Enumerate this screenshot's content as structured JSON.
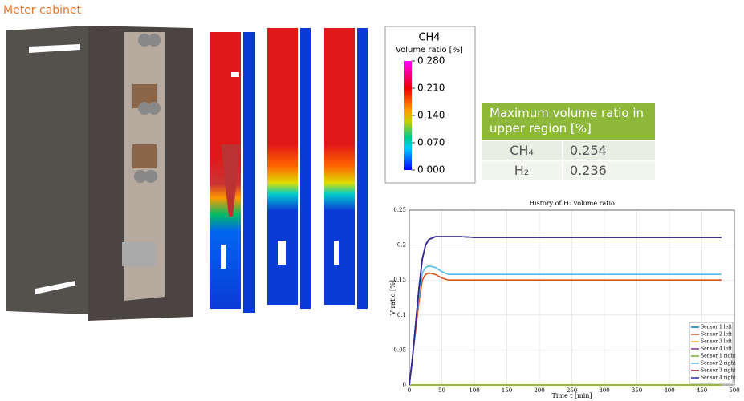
{
  "header": {
    "title": "Meter cabinet"
  },
  "colorbar": {
    "title": "CH4",
    "subtitle": "Volume ratio [%]",
    "ticks": [
      {
        "value": 0.28,
        "label": "0.280"
      },
      {
        "value": 0.21,
        "label": "0.210"
      },
      {
        "value": 0.14,
        "label": "0.140"
      },
      {
        "value": 0.07,
        "label": "0.070"
      },
      {
        "value": 0,
        "label": "0.000"
      }
    ]
  },
  "table": {
    "title": "Maximum volume ratio in upper region [%]",
    "rows": [
      [
        "CH₄",
        "0.254"
      ],
      [
        "H₂",
        "0.236"
      ]
    ]
  },
  "chart_data": {
    "type": "line",
    "title": "History of H₂ volume ratio",
    "x_label": "Time t [min]",
    "y_label": "V ratio [%]",
    "x": [
      0,
      5,
      10,
      15,
      20,
      25,
      30,
      40,
      50,
      60,
      80,
      100,
      150,
      200,
      300,
      400,
      480
    ],
    "series": [
      {
        "name": "Sensor 1 left",
        "color": "#0072bd",
        "values": [
          0,
          0.04,
          0.09,
          0.14,
          0.18,
          0.2,
          0.208,
          0.212,
          0.212,
          0.212,
          0.212,
          0.211,
          0.211,
          0.211,
          0.211,
          0.211,
          0.211
        ]
      },
      {
        "name": "Sensor 2 left",
        "color": "#d95319",
        "values": [
          0,
          0.04,
          0.08,
          0.12,
          0.15,
          0.158,
          0.16,
          0.158,
          0.153,
          0.15,
          0.15,
          0.15,
          0.15,
          0.15,
          0.15,
          0.15,
          0.15
        ]
      },
      {
        "name": "Sensor 3 left",
        "color": "#edb120",
        "values": [
          0,
          0,
          0,
          0,
          0,
          0,
          0,
          0,
          0,
          0,
          0,
          0,
          0,
          0,
          0,
          0,
          0
        ]
      },
      {
        "name": "Sensor 4 left",
        "color": "#7e2f8e",
        "values": [
          0,
          0.04,
          0.09,
          0.14,
          0.18,
          0.2,
          0.208,
          0.212,
          0.212,
          0.212,
          0.212,
          0.211,
          0.211,
          0.211,
          0.211,
          0.211,
          0.211
        ]
      },
      {
        "name": "Sensor 1 right",
        "color": "#77ac30",
        "values": [
          0,
          0,
          0,
          0,
          0,
          0,
          0,
          0,
          0,
          0,
          0,
          0,
          0,
          0,
          0,
          0,
          0
        ]
      },
      {
        "name": "Sensor 2 right",
        "color": "#4dbeee",
        "values": [
          0,
          0.04,
          0.09,
          0.13,
          0.16,
          0.168,
          0.17,
          0.168,
          0.162,
          0.158,
          0.158,
          0.158,
          0.158,
          0.158,
          0.158,
          0.158,
          0.158
        ]
      },
      {
        "name": "Sensor 3 right",
        "color": "#a2142f",
        "values": [
          0,
          0.04,
          0.09,
          0.14,
          0.18,
          0.2,
          0.208,
          0.212,
          0.212,
          0.212,
          0.212,
          0.211,
          0.211,
          0.211,
          0.211,
          0.211,
          0.211
        ]
      },
      {
        "name": "Sensor 4 right",
        "color": "#2b2b9e",
        "values": [
          0,
          0.04,
          0.09,
          0.14,
          0.18,
          0.2,
          0.208,
          0.212,
          0.212,
          0.212,
          0.212,
          0.211,
          0.211,
          0.211,
          0.211,
          0.211,
          0.211
        ]
      }
    ],
    "xlim": [
      0,
      500
    ],
    "xticks": [
      0,
      50,
      100,
      150,
      200,
      250,
      300,
      350,
      400,
      450,
      500
    ],
    "ylim": [
      0,
      0.25
    ],
    "yticks": [
      0,
      0.05,
      0.1,
      0.15,
      0.2,
      0.25
    ],
    "grid": true,
    "legend": "lower-right"
  }
}
